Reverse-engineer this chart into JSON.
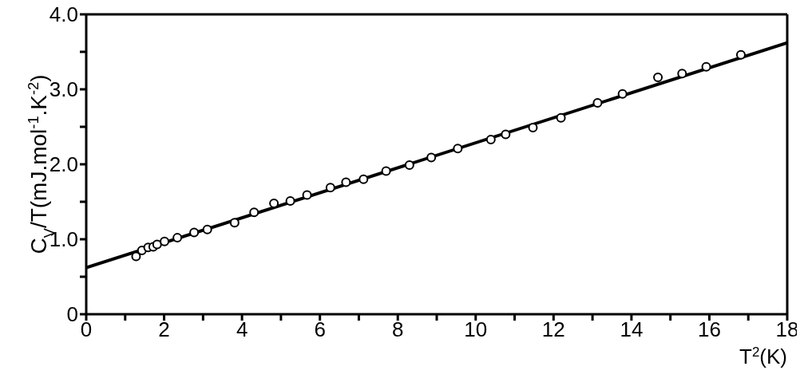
{
  "chart_data": {
    "type": "scatter",
    "xlabel": "T$^{2}$(K)",
    "ylabel": "C$_{V}$/T(mJ.mol$^{-1}$.K$^{-2}$)",
    "xlim": [
      0,
      18
    ],
    "ylim": [
      0,
      4.0
    ],
    "xticks": [
      0,
      {
        "value": 1,
        "label": null
      },
      2,
      {
        "value": 3,
        "label": null
      },
      4,
      {
        "value": 5,
        "label": null
      },
      6,
      {
        "value": 7,
        "label": null
      },
      8,
      {
        "value": 9,
        "label": null
      },
      10,
      {
        "value": 11,
        "label": null
      },
      12,
      {
        "value": 13,
        "label": null
      },
      14,
      {
        "value": 15,
        "label": null
      },
      16,
      {
        "value": 17,
        "label": null
      },
      18
    ],
    "yticks": [
      0,
      {
        "value": 0.5,
        "label": null
      },
      {
        "value": 1,
        "label": "1.0"
      },
      {
        "value": 1.5,
        "label": null
      },
      {
        "value": 2,
        "label": "2.0"
      },
      {
        "value": 2.5,
        "label": null
      },
      {
        "value": 3,
        "label": "3.0"
      },
      {
        "value": 3.5,
        "label": null
      },
      {
        "value": 4,
        "label": "4.0"
      }
    ],
    "series": [
      {
        "marker": "circle",
        "color": "#000000",
        "x": [
          1.28,
          1.43,
          1.59,
          1.72,
          1.82,
          2.01,
          2.34,
          2.77,
          3.11,
          3.81,
          4.31,
          4.82,
          5.24,
          5.67,
          6.27,
          6.67,
          7.12,
          7.7,
          8.3,
          8.86,
          9.54,
          10.39,
          10.77,
          11.47,
          12.19,
          13.13,
          13.77,
          14.68,
          15.3,
          15.92,
          16.81
        ],
        "values": [
          0.77,
          0.85,
          0.89,
          0.9,
          0.93,
          0.97,
          1.02,
          1.09,
          1.13,
          1.22,
          1.36,
          1.48,
          1.51,
          1.59,
          1.69,
          1.76,
          1.8,
          1.91,
          1.99,
          2.09,
          2.21,
          2.33,
          2.4,
          2.49,
          2.62,
          2.82,
          2.94,
          3.16,
          3.21,
          3.3,
          3.46
        ]
      },
      {
        "type": "line",
        "marker": "none",
        "line_style": "solid",
        "color": "#000000",
        "x": [
          0,
          18
        ],
        "values": [
          0.62,
          3.62
        ]
      }
    ]
  }
}
